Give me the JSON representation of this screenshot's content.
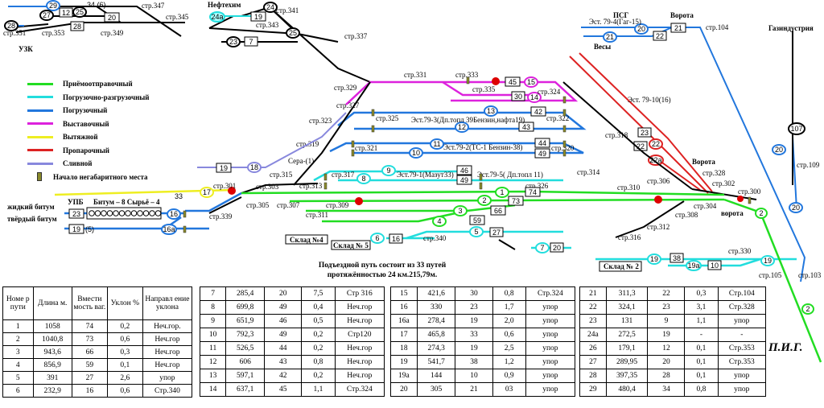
{
  "legend": [
    {
      "label": "Приёмоотправочный",
      "color": "#22dd22"
    },
    {
      "label": "Погрузочно-разгрузочный",
      "color": "#22dddd"
    },
    {
      "label": "Погрузочный",
      "color": "#2277dd"
    },
    {
      "label": "Выставочный",
      "color": "#dd22dd"
    },
    {
      "label": "Вытяжной",
      "color": "#eeee22"
    },
    {
      "label": "Пропарочный",
      "color": "#dd2222"
    },
    {
      "label": "Сливной",
      "color": "#8888dd"
    },
    {
      "label": "Начало негабаритного места",
      "color": "#8a8a2a"
    }
  ],
  "places": {
    "uzk": "УЗК",
    "neftekhim": "Нефтехим",
    "psg": "ПСГ",
    "vorota1": "Ворота",
    "vesy": "Весы",
    "gazindustriya": "Газиндустрия",
    "vorota2": "Ворота",
    "vorota3": "ворота",
    "upb": "УПБ",
    "liquid": "жидкий битум",
    "solid": "твёрдый битум",
    "bitum": "Битум – 8 Сырьё – 4",
    "sklad4": "Склад №4",
    "sklad5": "Склад № 5",
    "sklad2": "Склад № 2",
    "sera": "Сера-(1)",
    "est79_4": "Эст. 79-4(Гаг-15)",
    "est79_10": "Эст. 79-10(16)",
    "est79_3": "Эст.79-3(Дп.топл 39Бензин,нафта19)",
    "est79_2": "Эст.79-2(ТС-1 Бензин-38)",
    "est79_1": "Эст.79-1(Мазут33)",
    "est79_5": "Эст.79-5( Дп.топл 11)"
  },
  "switches": [
    "стр.351",
    "стр.353",
    "стр.347",
    "стр.349",
    "стр.345",
    "стр.341",
    "стр.343",
    "стр.337",
    "стр.104",
    "стр.331",
    "стр.333",
    "стр.335",
    "стр.329",
    "стр.324",
    "стр.327",
    "стр.323",
    "стр.325",
    "стр.322",
    "стр.319",
    "стр.321",
    "стр.320",
    "стр.318",
    "стр.315",
    "стр.317",
    "стр.314",
    "стр.326",
    "стр.310",
    "стр.306",
    "стр.328",
    "стр.302",
    "стр.300",
    "стр.301",
    "стр.303",
    "стр.313",
    "стр.305",
    "стр.307",
    "стр.309",
    "стр.304",
    "стр.339",
    "стр.311",
    "стр.308",
    "стр.312",
    "стр.340",
    "стр.316",
    "стр.330",
    "стр.105",
    "стр.103",
    "стр.109"
  ],
  "caption": {
    "line1": "Подъездной путь состоит из 33 путей",
    "line2": "протяжённостью 24 км.215,79м."
  },
  "signature": "П.И.Г.",
  "table_headers": [
    "Номе р пути",
    "Длина м.",
    "Вмести мость ваг.",
    "Уклон %",
    "Направл ение уклона"
  ],
  "tables": [
    [
      [
        "1",
        "1058",
        "74",
        "0,2",
        "Неч.гор."
      ],
      [
        "2",
        "1040,8",
        "73",
        "0,6",
        "Неч.гор"
      ],
      [
        "3",
        "943,6",
        "66",
        "0,3",
        "Неч.гор"
      ],
      [
        "4",
        "856,9",
        "59",
        "0,1",
        "Неч.гор"
      ],
      [
        "5",
        "391",
        "27",
        "2,6",
        "упор"
      ],
      [
        "6",
        "232,9",
        "16",
        "0,6",
        "Стр.340"
      ]
    ],
    [
      [
        "7",
        "285,4",
        "20",
        "7,5",
        "Стр 316"
      ],
      [
        "8",
        "699,8",
        "49",
        "0,4",
        "Неч.гор"
      ],
      [
        "9",
        "651,9",
        "46",
        "0,5",
        "Неч.гор"
      ],
      [
        "10",
        "792,3",
        "49",
        "0,2",
        "Стр120"
      ],
      [
        "11",
        "526,5",
        "44",
        "0,2",
        "Неч.гор"
      ],
      [
        "12",
        "606",
        "43",
        "0,8",
        "Неч.гор"
      ],
      [
        "13",
        "597,1",
        "42",
        "0,2",
        "Неч.гор"
      ],
      [
        "14",
        "637,1",
        "45",
        "1,1",
        "Стр.324"
      ]
    ],
    [
      [
        "15",
        "421,6",
        "30",
        "0,8",
        "Стр.324"
      ],
      [
        "16",
        "330",
        "23",
        "1,7",
        "упор"
      ],
      [
        "16а",
        "278,4",
        "19",
        "2,0",
        "упор"
      ],
      [
        "17",
        "465,8",
        "33",
        "0,6",
        "упор"
      ],
      [
        "18",
        "274,3",
        "19",
        "2,5",
        "упор"
      ],
      [
        "19",
        "541,7",
        "38",
        "1,2",
        "упор"
      ],
      [
        "19а",
        "144",
        "10",
        "0,9",
        "упор"
      ],
      [
        "20",
        "305",
        "21",
        "03",
        "упор"
      ]
    ],
    [
      [
        "21",
        "311,3",
        "22",
        "0,3",
        "Стр.104"
      ],
      [
        "22",
        "324,1",
        "23",
        "3,1",
        "Стр.328"
      ],
      [
        "23",
        "131",
        "9",
        "1,1",
        "упор"
      ],
      [
        "24а",
        "272,5",
        "19",
        "-",
        "-"
      ],
      [
        "26",
        "179,1",
        "12",
        "0,1",
        "Стр.353"
      ],
      [
        "27",
        "289,95",
        "20",
        "0,1",
        "Стр.353"
      ],
      [
        "28",
        "397,35",
        "28",
        "0,1",
        "упор"
      ],
      [
        "29",
        "480,4",
        "34",
        "0,8",
        "упор"
      ]
    ]
  ]
}
